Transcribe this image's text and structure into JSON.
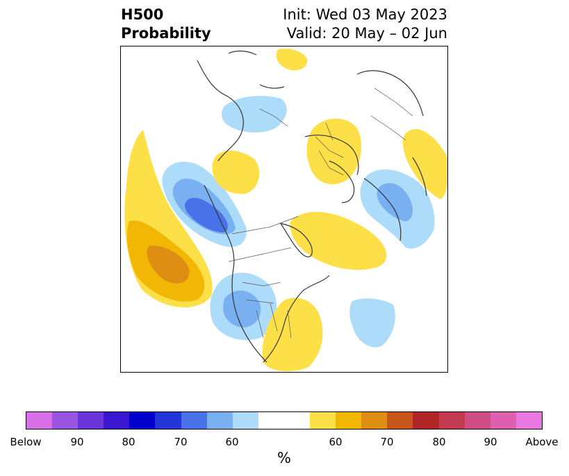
{
  "title": {
    "line1_left": "H500",
    "line2_left": "Probability",
    "line1_right": "Init: Wed 03 May 2023",
    "line2_right": "Valid: 20 May – 02 Jun"
  },
  "colorbar": {
    "unit": "%",
    "colors": [
      "#d96fe8",
      "#9a55e0",
      "#6a35d8",
      "#3a16d0",
      "#0000cc",
      "#2435d8",
      "#4a72e8",
      "#78b0f2",
      "#acdcfa",
      "#ffffff",
      "#ffffff",
      "#fde047",
      "#f2b705",
      "#de8e12",
      "#c8561a",
      "#b02525",
      "#c23a50",
      "#cf4d85",
      "#dc5fb0",
      "#e878e0"
    ],
    "tick_labels": [
      "Below",
      "90",
      "80",
      "70",
      "60",
      "60",
      "70",
      "80",
      "90",
      "Above"
    ]
  },
  "legend_colors": {
    "below_light": "#acdcfa",
    "below_mid": "#78b0f2",
    "below_dark": "#4a72e8",
    "above_light": "#fde047",
    "above_mid": "#f2b705",
    "above_dark": "#de8e12"
  }
}
